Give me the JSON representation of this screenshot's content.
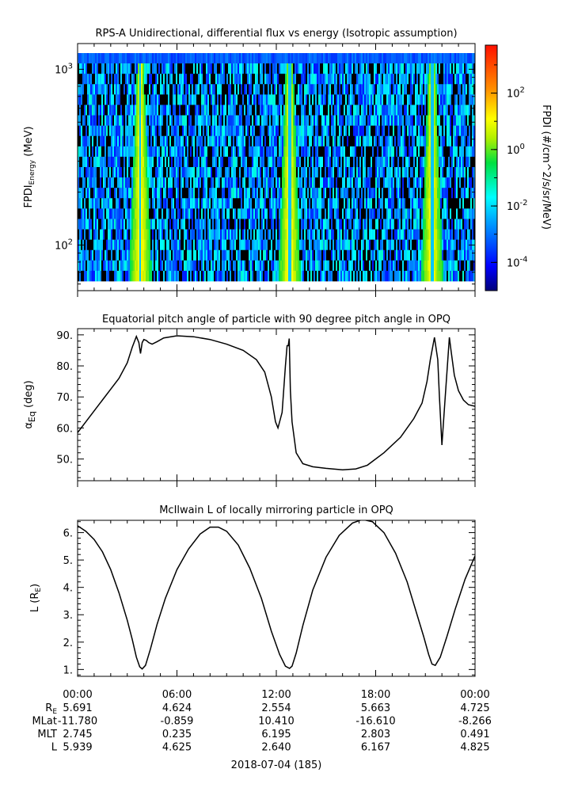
{
  "chart_data": [
    {
      "type": "heatmap",
      "title": "RPS-A Unidirectional, differential flux vs energy (Isotropic assumption)",
      "ylabel_main": "FPDI",
      "ylabel_sub": "Energy",
      "ylabel_unit": "(MeV)",
      "y_scale": "log",
      "ylim": [
        55,
        1400
      ],
      "y_ticks": [
        {
          "value": 100,
          "base": "10",
          "exp": "2"
        },
        {
          "value": 1000,
          "base": "10",
          "exp": "3"
        }
      ],
      "x_range_hours": [
        0,
        24
      ],
      "hot_bands_hours": [
        3.8,
        12.8,
        21.4
      ],
      "colorbar": {
        "label": "FPDI (#/cm^2/s/sr/MeV)",
        "scale": "log",
        "range": [
          1e-05,
          5000
        ],
        "ticks": [
          {
            "value": 0.0001,
            "base": "10",
            "exp": "-4"
          },
          {
            "value": 0.01,
            "base": "10",
            "exp": "-2"
          },
          {
            "value": 1,
            "base": "10",
            "exp": "0"
          },
          {
            "value": 100,
            "base": "10",
            "exp": "2"
          }
        ]
      }
    },
    {
      "type": "line",
      "title": "Equatorial pitch angle of particle with 90 degree pitch angle in OPQ",
      "ylabel_main": "α",
      "ylabel_sub": "Eq",
      "ylabel_unit": "(deg)",
      "ylim": [
        43,
        92
      ],
      "y_ticks": [
        "50.",
        "60.",
        "70.",
        "80.",
        "90."
      ],
      "x_hours": [
        0,
        0.5,
        1,
        1.5,
        2,
        2.5,
        3,
        3.3,
        3.55,
        3.7,
        3.8,
        3.9,
        4.0,
        4.15,
        4.3,
        4.5,
        4.8,
        5.2,
        6.0,
        7.0,
        8.0,
        9.0,
        10.0,
        10.8,
        11.3,
        11.7,
        11.95,
        12.1,
        12.35,
        12.55,
        12.65,
        12.72,
        12.78,
        12.85,
        12.95,
        13.2,
        13.6,
        14.2,
        15.0,
        16.0,
        16.8,
        17.5,
        18.5,
        19.5,
        20.3,
        20.8,
        21.1,
        21.3,
        21.55,
        21.75,
        21.85,
        22.0,
        22.2,
        22.45,
        22.55,
        22.75,
        23.0,
        23.3,
        23.6,
        24.0
      ],
      "y_values": [
        58.5,
        62,
        65.5,
        69,
        72.5,
        76,
        81,
        86,
        89.5,
        87.5,
        84,
        87.5,
        88.5,
        88.2,
        87.5,
        87,
        87.8,
        89,
        89.7,
        89.4,
        88.5,
        87,
        85,
        82,
        78,
        70,
        62,
        60,
        65,
        80,
        86.5,
        86.5,
        88.8,
        72,
        62,
        52,
        48.5,
        47.5,
        47,
        46.5,
        46.8,
        48,
        52,
        57,
        63,
        68,
        75,
        82,
        89.2,
        82,
        70,
        54.5,
        70,
        89.2,
        85,
        77,
        72,
        69,
        67.5,
        67
      ],
      "unit_note": "x in hours UT from 00:00"
    },
    {
      "type": "line",
      "title": "McIlwain L of locally mirroring particle in OPQ",
      "ylabel_main": "L (R",
      "ylabel_sub": "E",
      "ylabel_tail": ")",
      "ylim": [
        0.75,
        6.45
      ],
      "y_ticks": [
        "1.",
        "2.",
        "3.",
        "4.",
        "5.",
        "6."
      ],
      "x_hours": [
        0,
        0.5,
        1,
        1.5,
        2,
        2.5,
        3,
        3.3,
        3.55,
        3.75,
        3.9,
        4.1,
        4.4,
        4.8,
        5.3,
        6.0,
        6.7,
        7.4,
        8.0,
        8.5,
        9.0,
        9.7,
        10.4,
        11.1,
        11.7,
        12.2,
        12.55,
        12.8,
        12.95,
        13.2,
        13.6,
        14.2,
        15.0,
        15.8,
        16.6,
        17.2,
        17.8,
        18.5,
        19.2,
        19.9,
        20.5,
        20.9,
        21.2,
        21.4,
        21.6,
        21.9,
        22.3,
        22.8,
        23.4,
        24.0
      ],
      "y_values": [
        6.25,
        6.05,
        5.75,
        5.3,
        4.65,
        3.8,
        2.8,
        2.1,
        1.45,
        1.1,
        1.02,
        1.15,
        1.75,
        2.65,
        3.6,
        4.65,
        5.4,
        5.95,
        6.2,
        6.2,
        6.05,
        5.55,
        4.7,
        3.6,
        2.4,
        1.55,
        1.12,
        1.04,
        1.12,
        1.6,
        2.6,
        3.9,
        5.1,
        5.9,
        6.35,
        6.48,
        6.4,
        6.0,
        5.25,
        4.2,
        3.0,
        2.2,
        1.55,
        1.2,
        1.15,
        1.45,
        2.2,
        3.2,
        4.3,
        5.15
      ],
      "unit_note": "x in hours UT from 00:00"
    }
  ],
  "x_axis": {
    "tick_labels": [
      "00:00",
      "06:00",
      "12:00",
      "18:00",
      "00:00"
    ],
    "date_label": "2018-07-04 (185)"
  },
  "ephemeris": {
    "rows": [
      {
        "label": "R",
        "label_sub": "E",
        "values": [
          "5.691",
          "4.624",
          "2.554",
          "5.663",
          "4.725"
        ]
      },
      {
        "label": "MLat",
        "label_sub": "",
        "values": [
          "-11.780",
          "-0.859",
          "10.410",
          "-16.610",
          "-8.266"
        ]
      },
      {
        "label": "MLT",
        "label_sub": "",
        "values": [
          "2.745",
          "0.235",
          "6.195",
          "2.803",
          "0.491"
        ]
      },
      {
        "label": "L",
        "label_sub": "",
        "values": [
          "5.939",
          "4.625",
          "2.640",
          "6.167",
          "4.825"
        ]
      }
    ]
  },
  "colors": {
    "line": "#000000",
    "background": "#ffffff"
  }
}
